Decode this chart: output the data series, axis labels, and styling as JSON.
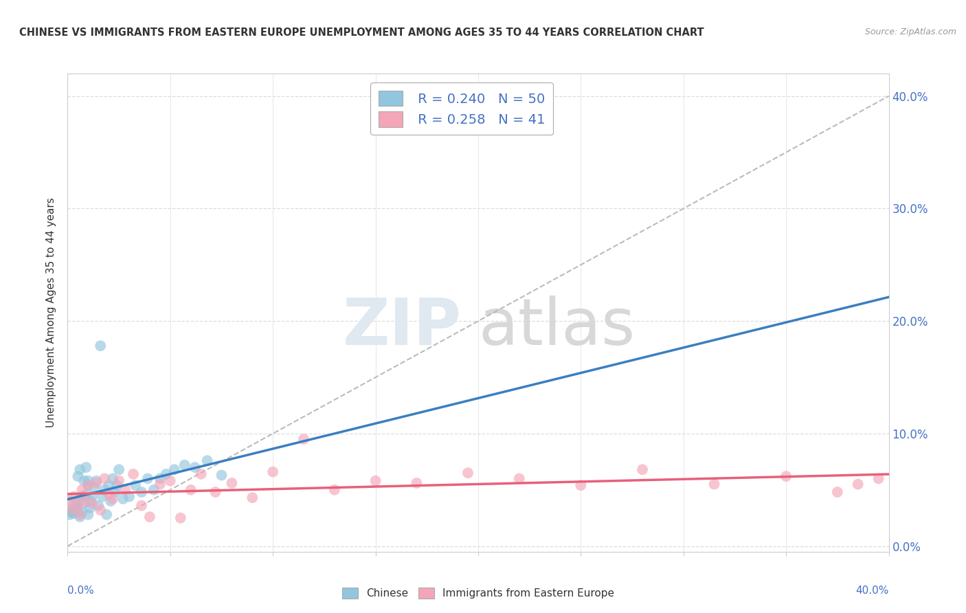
{
  "title": "CHINESE VS IMMIGRANTS FROM EASTERN EUROPE UNEMPLOYMENT AMONG AGES 35 TO 44 YEARS CORRELATION CHART",
  "source": "Source: ZipAtlas.com",
  "ylabel": "Unemployment Among Ages 35 to 44 years",
  "legend_chinese": "Chinese",
  "legend_eastern": "Immigrants from Eastern Europe",
  "r_chinese": "0.240",
  "n_chinese": "50",
  "r_eastern": "0.258",
  "n_eastern": "41",
  "color_chinese": "#92c5de",
  "color_eastern": "#f4a6b8",
  "color_chinese_line": "#3a7fc1",
  "color_eastern_line": "#e8607a",
  "color_diag": "#bbbbbb",
  "color_text_blue": "#4472c4",
  "color_text_dark": "#333333",
  "color_source": "#999999",
  "color_grid": "#dddddd",
  "color_spine": "#cccccc",
  "color_bg": "#ffffff",
  "xlim": [
    0.0,
    0.4
  ],
  "ylim": [
    -0.005,
    0.42
  ],
  "yticks": [
    0.0,
    0.1,
    0.2,
    0.3,
    0.4
  ],
  "ytick_labels": [
    "0.0%",
    "10.0%",
    "20.0%",
    "30.0%",
    "40.0%"
  ],
  "chinese_x": [
    0.001,
    0.002,
    0.002,
    0.003,
    0.003,
    0.004,
    0.004,
    0.005,
    0.005,
    0.005,
    0.006,
    0.006,
    0.007,
    0.007,
    0.008,
    0.008,
    0.009,
    0.009,
    0.01,
    0.01,
    0.01,
    0.011,
    0.011,
    0.012,
    0.013,
    0.014,
    0.015,
    0.016,
    0.017,
    0.018,
    0.019,
    0.02,
    0.021,
    0.022,
    0.023,
    0.024,
    0.025,
    0.027,
    0.03,
    0.033,
    0.036,
    0.039,
    0.042,
    0.045,
    0.048,
    0.052,
    0.057,
    0.062,
    0.068,
    0.075
  ],
  "chinese_y": [
    0.028,
    0.03,
    0.032,
    0.029,
    0.038,
    0.033,
    0.035,
    0.031,
    0.062,
    0.04,
    0.026,
    0.068,
    0.044,
    0.03,
    0.058,
    0.038,
    0.07,
    0.046,
    0.054,
    0.028,
    0.058,
    0.034,
    0.04,
    0.044,
    0.052,
    0.058,
    0.036,
    0.178,
    0.044,
    0.05,
    0.028,
    0.054,
    0.04,
    0.06,
    0.048,
    0.054,
    0.068,
    0.042,
    0.044,
    0.054,
    0.048,
    0.06,
    0.05,
    0.06,
    0.064,
    0.068,
    0.072,
    0.07,
    0.076,
    0.063
  ],
  "eastern_x": [
    0.001,
    0.002,
    0.003,
    0.005,
    0.006,
    0.007,
    0.008,
    0.01,
    0.012,
    0.014,
    0.016,
    0.018,
    0.02,
    0.022,
    0.025,
    0.028,
    0.032,
    0.036,
    0.04,
    0.045,
    0.05,
    0.055,
    0.06,
    0.065,
    0.072,
    0.08,
    0.09,
    0.1,
    0.115,
    0.13,
    0.15,
    0.17,
    0.195,
    0.22,
    0.25,
    0.28,
    0.315,
    0.35,
    0.375,
    0.385,
    0.395
  ],
  "eastern_y": [
    0.04,
    0.033,
    0.044,
    0.036,
    0.028,
    0.05,
    0.04,
    0.054,
    0.038,
    0.056,
    0.032,
    0.06,
    0.046,
    0.042,
    0.058,
    0.05,
    0.064,
    0.036,
    0.026,
    0.055,
    0.058,
    0.025,
    0.05,
    0.064,
    0.048,
    0.056,
    0.043,
    0.066,
    0.095,
    0.05,
    0.058,
    0.056,
    0.065,
    0.06,
    0.054,
    0.068,
    0.055,
    0.062,
    0.048,
    0.055,
    0.06
  ],
  "watermark_zip": "ZIP",
  "watermark_atlas": "atlas"
}
